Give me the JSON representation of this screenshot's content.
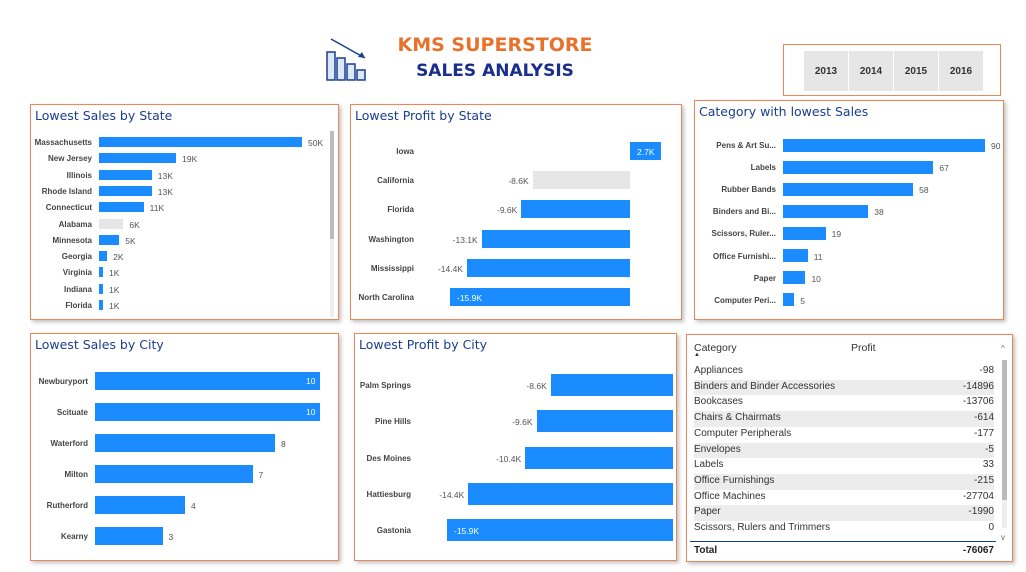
{
  "header": {
    "title_line1": "KMS SUPERSTORE",
    "title_line2": "SALES ANALYSIS",
    "icon": "chart-down-icon",
    "colors": {
      "title1": "#e8722c",
      "title2": "#1a2e8f",
      "bar": "#1a8cff",
      "panel_border": "#e8875a"
    }
  },
  "year_slicer": [
    "2013",
    "2014",
    "2015",
    "2016"
  ],
  "lowest_sales_by_state": {
    "title": "Lowest Sales by State",
    "chart_data": {
      "type": "bar",
      "categories": [
        "Massachusetts",
        "New Jersey",
        "Illinois",
        "Rhode Island",
        "Connecticut",
        "Alabama",
        "Minnesota",
        "Georgia",
        "Virginia",
        "Indiana",
        "Florida"
      ],
      "values": [
        50000,
        19000,
        13000,
        13000,
        11000,
        6000,
        5000,
        2000,
        1000,
        1000,
        1000
      ],
      "labels": [
        "50K",
        "19K",
        "13K",
        "13K",
        "11K",
        "6K",
        "5K",
        "2K",
        "1K",
        "1K",
        "1K"
      ],
      "highlighted": "Alabama"
    }
  },
  "lowest_profit_by_state": {
    "title": "Lowest Profit by State",
    "chart_data": {
      "type": "bar",
      "categories": [
        "Iowa",
        "California",
        "Florida",
        "Washington",
        "Mississippi",
        "North Carolina"
      ],
      "values": [
        2700,
        -8600,
        -9600,
        -13100,
        -14400,
        -15900
      ],
      "labels": [
        "2.7K",
        "-8.6K",
        "-9.6K",
        "-13.1K",
        "-14.4K",
        "-15.9K"
      ],
      "highlighted": "California"
    }
  },
  "category_lowest_sales": {
    "title": "Category with lowest Sales",
    "chart_data": {
      "type": "bar",
      "categories": [
        "Pens & Art Su...",
        "Labels",
        "Rubber Bands",
        "Binders and Bi...",
        "Scissors, Ruler...",
        "Office Furnishi...",
        "Paper",
        "Computer Peri..."
      ],
      "values": [
        90,
        67,
        58,
        38,
        19,
        11,
        10,
        5
      ],
      "labels": [
        "90",
        "67",
        "58",
        "38",
        "19",
        "11",
        "10",
        "5"
      ]
    }
  },
  "lowest_sales_by_city": {
    "title": "Lowest Sales by City",
    "chart_data": {
      "type": "bar",
      "categories": [
        "Newburyport",
        "Scituate",
        "Waterford",
        "Milton",
        "Rutherford",
        "Kearny"
      ],
      "values": [
        10,
        10,
        8,
        7,
        4,
        3
      ],
      "labels": [
        "10",
        "10",
        "8",
        "7",
        "4",
        "3"
      ]
    }
  },
  "lowest_profit_by_city": {
    "title": "Lowest Profit by City",
    "chart_data": {
      "type": "bar",
      "categories": [
        "Palm Springs",
        "Pine Hills",
        "Des Moines",
        "Hattiesburg",
        "Gastonia"
      ],
      "values": [
        -8600,
        -9600,
        -10400,
        -14400,
        -15900
      ],
      "labels": [
        "-8.6K",
        "-9.6K",
        "-10.4K",
        "-14.4K",
        "-15.9K"
      ]
    }
  },
  "profit_table": {
    "columns": [
      "Category",
      "Profit"
    ],
    "rows": [
      {
        "category": "Appliances",
        "profit": "-98"
      },
      {
        "category": "Binders and Binder Accessories",
        "profit": "-14896"
      },
      {
        "category": "Bookcases",
        "profit": "-13706"
      },
      {
        "category": "Chairs & Chairmats",
        "profit": "-614"
      },
      {
        "category": "Computer Peripherals",
        "profit": "-177"
      },
      {
        "category": "Envelopes",
        "profit": "-5"
      },
      {
        "category": "Labels",
        "profit": "33"
      },
      {
        "category": "Office Furnishings",
        "profit": "-215"
      },
      {
        "category": "Office Machines",
        "profit": "-27704"
      },
      {
        "category": "Paper",
        "profit": "-1990"
      },
      {
        "category": "Scissors, Rulers and Trimmers",
        "profit": "0"
      }
    ],
    "total_label": "Total",
    "total_value": "-76067"
  }
}
